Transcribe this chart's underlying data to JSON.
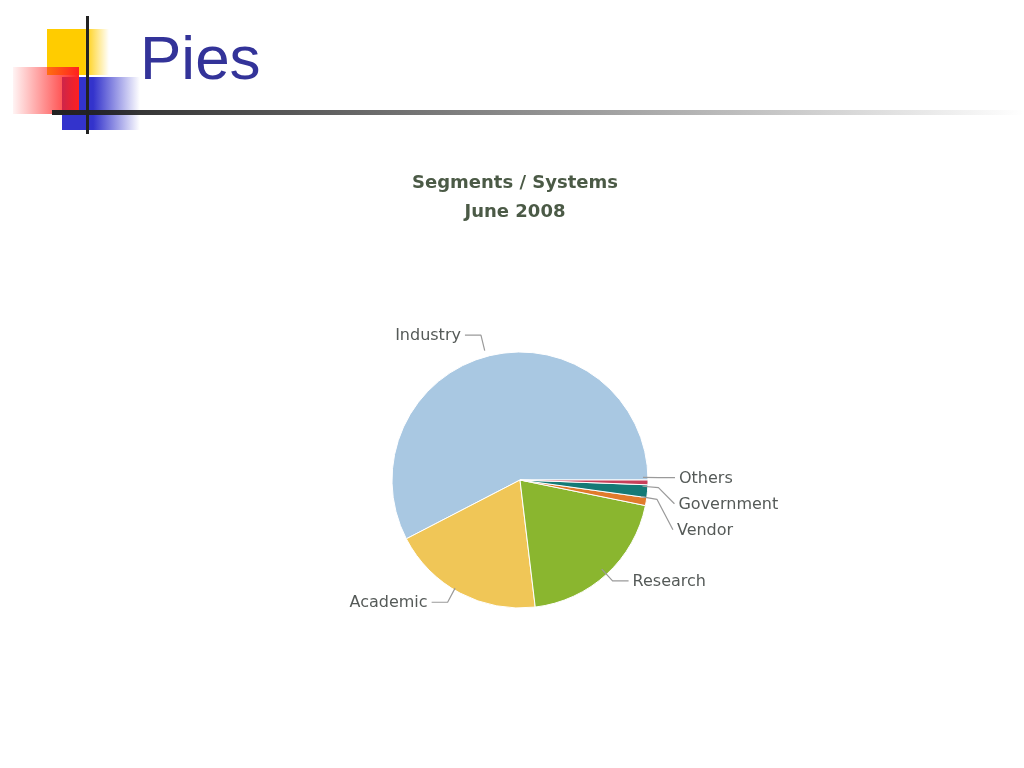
{
  "chart_data": {
    "type": "pie",
    "title": "Segments / Systems",
    "subtitle": "June 2008",
    "annotations": [
      "Pies"
    ],
    "categories": [
      "Industry",
      "Academic",
      "Research",
      "Vendor",
      "Government",
      "Others"
    ],
    "values": [
      57.6,
      19.3,
      19.9,
      1.0,
      1.6,
      0.6
    ],
    "colors": [
      "#a9c8e2",
      "#f0c657",
      "#8ab62f",
      "#e07b2c",
      "#157a76",
      "#c8405a"
    ]
  }
}
